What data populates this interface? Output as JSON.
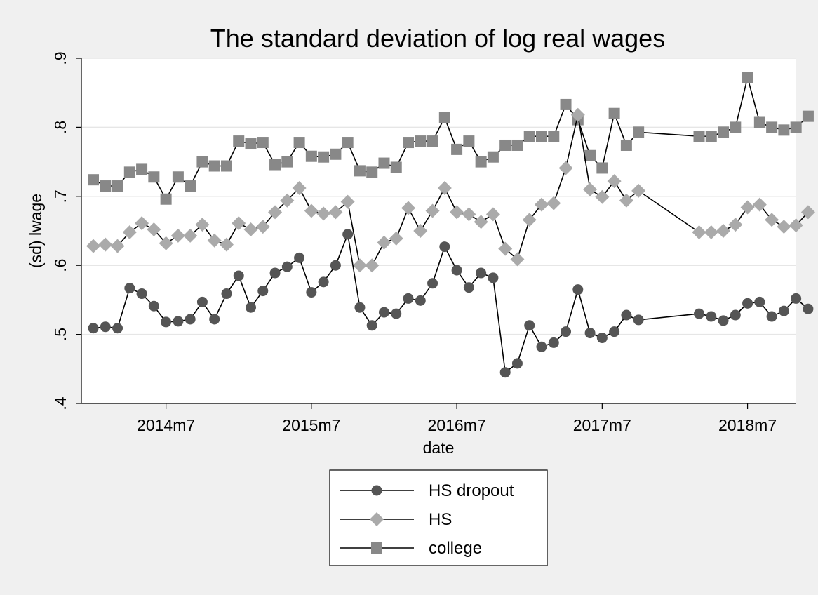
{
  "chart_data": {
    "type": "line",
    "title": "The standard deviation of log real wages",
    "xlabel": "date",
    "ylabel": "(sd) lwage",
    "x": [
      "2014m1",
      "2014m2",
      "2014m3",
      "2014m4",
      "2014m5",
      "2014m6",
      "2014m7",
      "2014m8",
      "2014m9",
      "2014m10",
      "2014m11",
      "2014m12",
      "2015m1",
      "2015m2",
      "2015m3",
      "2015m4",
      "2015m5",
      "2015m6",
      "2015m7",
      "2015m8",
      "2015m9",
      "2015m10",
      "2015m11",
      "2015m12",
      "2016m1",
      "2016m2",
      "2016m3",
      "2016m4",
      "2016m5",
      "2016m6",
      "2016m7",
      "2016m8",
      "2016m9",
      "2016m10",
      "2016m11",
      "2016m12",
      "2017m1",
      "2017m2",
      "2017m3",
      "2017m4",
      "2017m5",
      "2017m6",
      "2017m7",
      "2017m8",
      "2017m9",
      "2017m10",
      "2017m11",
      "2017m12",
      "2018m1",
      "2018m2",
      "2018m3",
      "2018m4",
      "2018m5",
      "2018m6",
      "2018m7",
      "2018m8",
      "2018m9",
      "2018m10",
      "2018m11",
      "2018m12"
    ],
    "x_ticks": [
      "2014m7",
      "2015m7",
      "2016m7",
      "2017m7",
      "2018m7"
    ],
    "y_ticks": [
      ".4",
      ".5",
      ".6",
      ".7",
      ".8",
      ".9"
    ],
    "ylim": [
      0.4,
      0.9
    ],
    "grid": true,
    "legend_position": "bottom",
    "series": [
      {
        "name": "HS dropout",
        "marker": "circle",
        "color": "#555555",
        "values": [
          0.509,
          0.511,
          0.509,
          0.567,
          0.559,
          0.541,
          0.518,
          0.519,
          0.522,
          0.547,
          0.522,
          0.559,
          0.585,
          0.539,
          0.563,
          0.589,
          0.598,
          0.611,
          0.561,
          0.576,
          0.6,
          0.645,
          0.539,
          0.513,
          0.532,
          0.53,
          0.552,
          0.549,
          0.574,
          0.627,
          0.593,
          0.568,
          0.589,
          0.582,
          0.445,
          0.458,
          0.513,
          0.482,
          0.488,
          0.504,
          0.565,
          0.502,
          0.495,
          0.504,
          0.528,
          0.521,
          null,
          null,
          null,
          null,
          0.53,
          0.526,
          0.52,
          0.528,
          0.545,
          0.547,
          0.526,
          0.534,
          0.552,
          0.537
        ]
      },
      {
        "name": "HS",
        "marker": "diamond",
        "color": "#aaaaaa",
        "values": [
          0.628,
          0.63,
          0.628,
          0.648,
          0.661,
          0.652,
          0.632,
          0.643,
          0.643,
          0.659,
          0.636,
          0.63,
          0.661,
          0.652,
          0.656,
          0.677,
          0.694,
          0.712,
          0.679,
          0.675,
          0.677,
          0.692,
          0.6,
          0.6,
          0.633,
          0.639,
          0.683,
          0.65,
          0.679,
          0.712,
          0.677,
          0.674,
          0.663,
          0.674,
          0.624,
          0.609,
          0.666,
          0.688,
          0.69,
          0.741,
          0.818,
          0.71,
          0.699,
          0.722,
          0.694,
          0.708,
          null,
          null,
          null,
          null,
          0.648,
          0.648,
          0.65,
          0.659,
          0.684,
          0.688,
          0.666,
          0.656,
          0.658,
          0.677
        ]
      },
      {
        "name": "college",
        "marker": "square",
        "color": "#888888",
        "values": [
          0.724,
          0.715,
          0.715,
          0.735,
          0.739,
          0.728,
          0.696,
          0.728,
          0.715,
          0.75,
          0.744,
          0.744,
          0.78,
          0.776,
          0.778,
          0.746,
          0.75,
          0.778,
          0.758,
          0.757,
          0.761,
          0.778,
          0.737,
          0.735,
          0.748,
          0.742,
          0.778,
          0.78,
          0.78,
          0.814,
          0.768,
          0.78,
          0.75,
          0.757,
          0.774,
          0.774,
          0.787,
          0.787,
          0.787,
          0.833,
          0.811,
          0.759,
          0.741,
          0.82,
          0.774,
          0.793,
          null,
          null,
          null,
          null,
          0.787,
          0.787,
          0.793,
          0.8,
          0.872,
          0.807,
          0.8,
          0.796,
          0.8,
          0.816
        ]
      }
    ]
  }
}
